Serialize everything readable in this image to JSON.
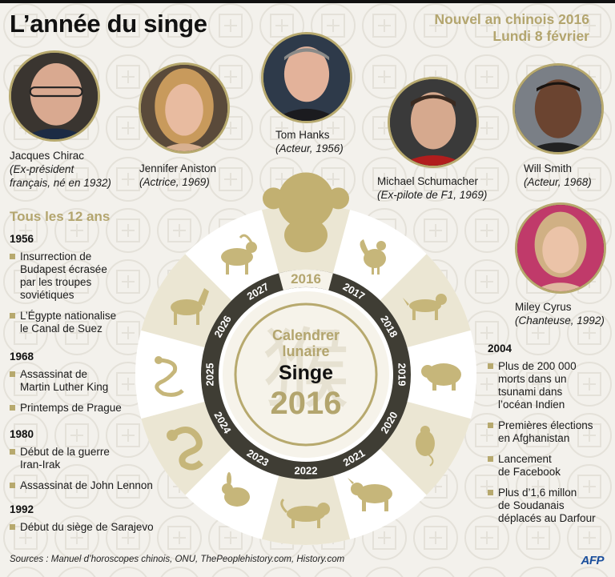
{
  "title": "L’année du singe",
  "event": {
    "line1": "Nouvel an chinois 2016",
    "line2": "Lundi 8 février"
  },
  "colors": {
    "gold": "#b7a96e",
    "gold_text": "#b3a56e",
    "wheel_light": "#ebe6d3",
    "ring_dark": "#3f3d34",
    "logo_blue": "#1a4e9c"
  },
  "celebrities": [
    {
      "name": "Jacques Chirac",
      "role_line1": "(Ex-président",
      "role_line2": "français, né en 1932)"
    },
    {
      "name": "Jennifer Aniston",
      "role_line1": "(Actrice, 1969)"
    },
    {
      "name": "Tom Hanks",
      "role_line1": "(Acteur, 1956)"
    },
    {
      "name": "Michael Schumacher",
      "role_line1": "(Ex-pilote de F1, 1969)"
    },
    {
      "name": "Will Smith",
      "role_line1": "(Acteur, 1968)"
    },
    {
      "name": "Miley Cyrus",
      "role_line1": "(Chanteuse, 1992)"
    }
  ],
  "section_title": "Tous les 12 ans",
  "left_events": [
    {
      "year": "1956",
      "items": [
        [
          "Insurrection de",
          "Budapest écrasée",
          "par les troupes",
          "soviétiques"
        ],
        [
          "L’Égypte nationalise",
          "le Canal de Suez"
        ]
      ]
    },
    {
      "year": "1968",
      "items": [
        [
          "Assassinat de",
          "Martin Luther King"
        ],
        [
          "Printemps de Prague"
        ]
      ]
    },
    {
      "year": "1980",
      "items": [
        [
          "Début de la guerre",
          "Iran-Irak"
        ],
        [
          "Assassinat de John Lennon"
        ]
      ]
    },
    {
      "year": "1992",
      "items": [
        [
          "Début du siège de Sarajevo"
        ]
      ]
    }
  ],
  "right_events": {
    "year": "2004",
    "items": [
      [
        "Plus de 200 000",
        "morts dans un",
        "tsunami dans",
        "l’océan Indien"
      ],
      [
        "Premières élections",
        "en Afghanistan"
      ],
      [
        "Lancement",
        "de Facebook"
      ],
      [
        "Plus d’1,6 millon",
        "de Soudanais",
        "déplacés au Darfour"
      ]
    ]
  },
  "wheel": {
    "center_line1": "Calendrer",
    "center_line2": "lunaire",
    "center_animal": "Singe",
    "center_year": "2016",
    "top_year": "2016",
    "ring_years": [
      "2017",
      "2018",
      "2019",
      "2020",
      "2021",
      "2022",
      "2023",
      "2024",
      "2025",
      "2026",
      "2027"
    ],
    "animals": [
      "monkey-icon",
      "rooster-icon",
      "dog-icon",
      "pig-icon",
      "rat-icon",
      "ox-icon",
      "tiger-icon",
      "rabbit-icon",
      "dragon-icon",
      "snake-icon",
      "horse-icon",
      "goat-icon"
    ]
  },
  "sources": "Sources : Manuel d’horoscopes chinois, ONU, ThePeoplehistory.com, History.com",
  "logo": "AFP"
}
